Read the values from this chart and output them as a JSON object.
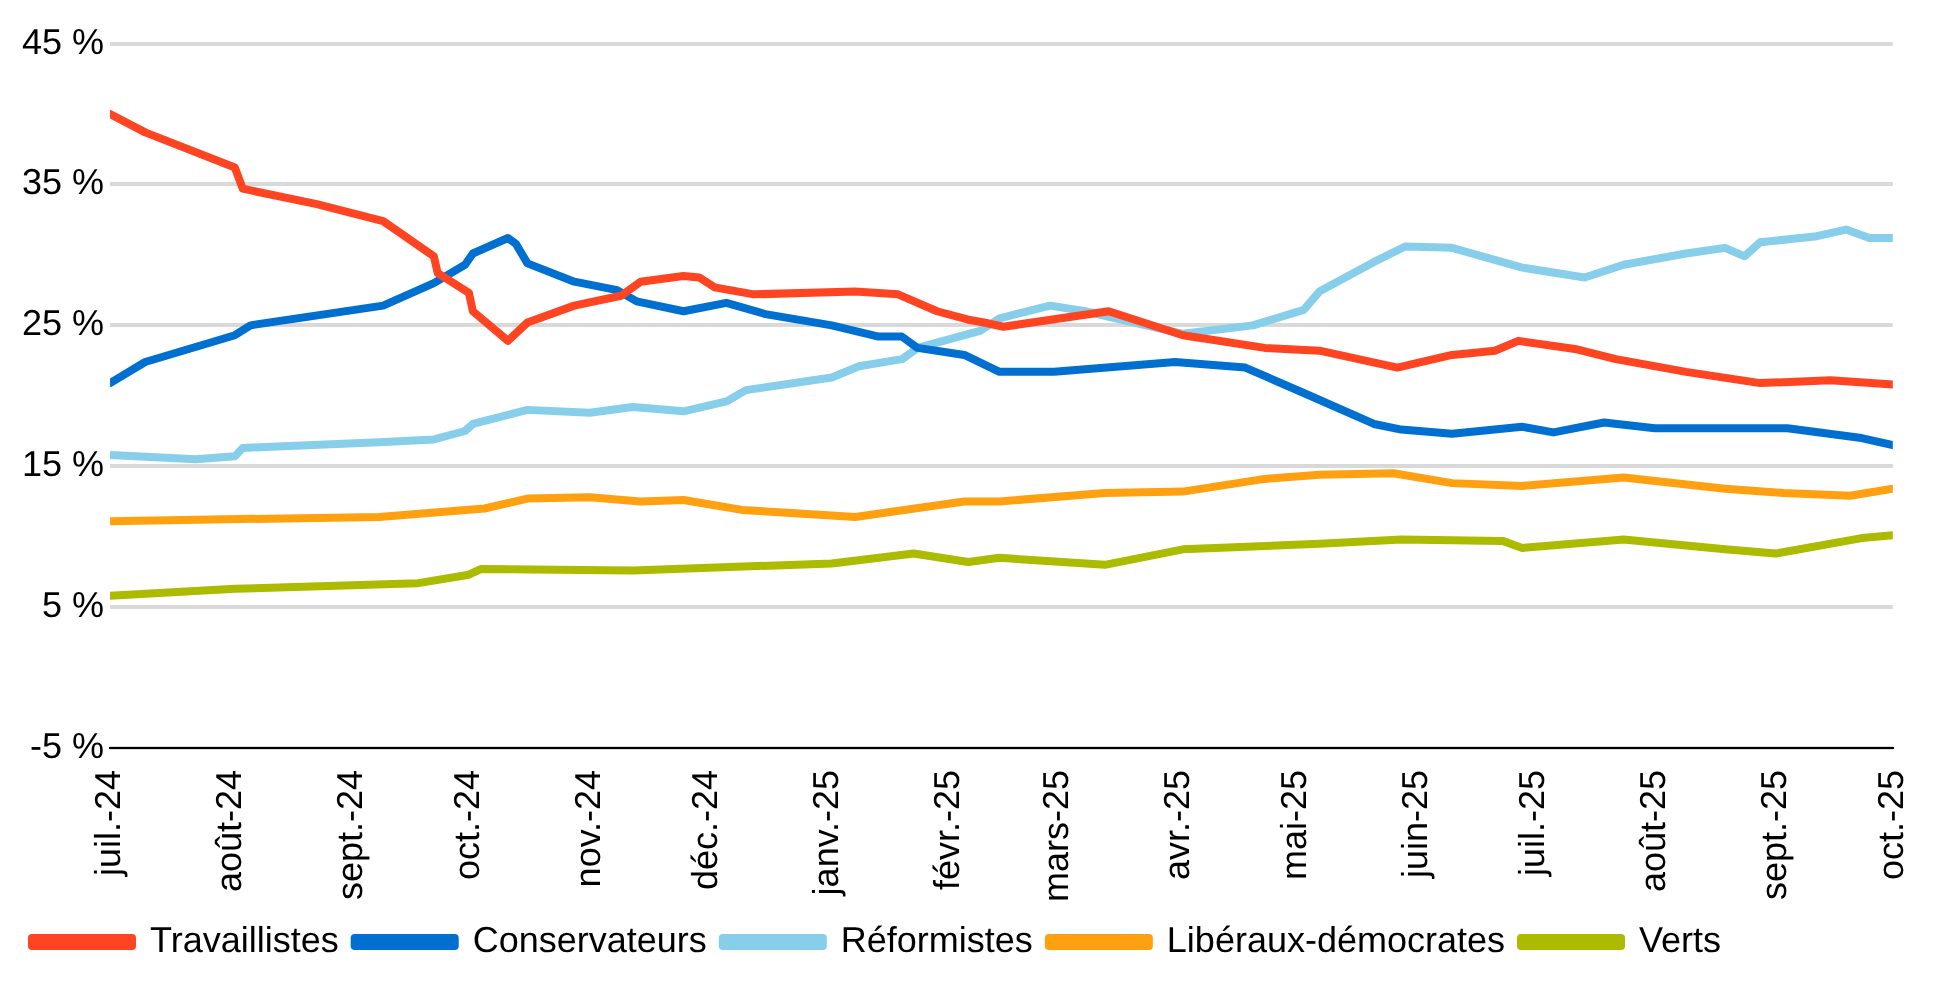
{
  "chart_data": {
    "type": "line",
    "xlim": [
      "2024-07-01",
      "2025-10-01"
    ],
    "xticks": [
      {
        "value": "2024-07-01",
        "label": "juil.-24"
      },
      {
        "value": "2024-08-01",
        "label": "août-24"
      },
      {
        "value": "2024-09-01",
        "label": "sept.-24"
      },
      {
        "value": "2024-10-01",
        "label": "oct.-24"
      },
      {
        "value": "2024-11-01",
        "label": "nov.-24"
      },
      {
        "value": "2024-12-01",
        "label": "déc.-24"
      },
      {
        "value": "2025-01-01",
        "label": "janv.-25"
      },
      {
        "value": "2025-02-01",
        "label": "févr.-25"
      },
      {
        "value": "2025-03-01",
        "label": "mars-25"
      },
      {
        "value": "2025-04-01",
        "label": "avr.-25"
      },
      {
        "value": "2025-05-01",
        "label": "mai-25"
      },
      {
        "value": "2025-06-01",
        "label": "juin-25"
      },
      {
        "value": "2025-07-01",
        "label": "juil.-25"
      },
      {
        "value": "2025-08-01",
        "label": "août-25"
      },
      {
        "value": "2025-09-01",
        "label": "sept.-25"
      },
      {
        "value": "2025-10-01",
        "label": "oct.-25"
      }
    ],
    "ylim": [
      -5,
      45
    ],
    "yticks": [
      {
        "value": -5,
        "label": "-5 %"
      },
      {
        "value": 5,
        "label": "5 %"
      },
      {
        "value": 15,
        "label": "15 %"
      },
      {
        "value": 25,
        "label": "25 %"
      },
      {
        "value": 35,
        "label": "35 %"
      },
      {
        "value": 45,
        "label": "45 %"
      }
    ],
    "grid": "y",
    "legend": "bottom",
    "marker": "none",
    "line_style": "solid",
    "series": [
      {
        "name": "Travaillistes",
        "color": "#ff4422",
        "x": [
          "2024-07-01",
          "2024-07-10",
          "2024-08-02",
          "2024-08-04",
          "2024-08-23",
          "2024-09-09",
          "2024-09-22",
          "2024-09-23",
          "2024-10-01",
          "2024-10-02",
          "2024-10-11",
          "2024-10-16",
          "2024-10-28",
          "2024-11-09",
          "2024-11-14",
          "2024-11-25",
          "2024-11-29",
          "2024-12-03",
          "2024-12-13",
          "2025-01-08",
          "2025-01-19",
          "2025-01-29",
          "2025-02-06",
          "2025-02-10",
          "2025-02-15",
          "2025-03-14",
          "2025-04-02",
          "2025-04-23",
          "2025-05-07",
          "2025-05-27",
          "2025-06-10",
          "2025-06-21",
          "2025-06-27",
          "2025-07-12",
          "2025-07-22",
          "2025-08-09",
          "2025-08-28",
          "2025-09-15",
          "2025-10-01"
        ],
        "values": [
          40.0,
          38.7,
          36.2,
          34.7,
          33.6,
          32.4,
          29.9,
          28.7,
          27.3,
          26.0,
          23.9,
          25.2,
          26.4,
          27.1,
          28.1,
          28.5,
          28.4,
          27.7,
          27.2,
          27.4,
          27.2,
          26.0,
          25.4,
          25.2,
          24.9,
          26.0,
          24.3,
          23.4,
          23.2,
          22.0,
          22.9,
          23.2,
          23.9,
          23.3,
          22.6,
          21.7,
          20.9,
          21.1,
          20.8
        ]
      },
      {
        "name": "Conservateurs",
        "color": "#0070d0",
        "x": [
          "2024-07-01",
          "2024-07-10",
          "2024-08-02",
          "2024-08-06",
          "2024-09-09",
          "2024-09-22",
          "2024-09-30",
          "2024-10-02",
          "2024-10-11",
          "2024-10-13",
          "2024-10-16",
          "2024-10-28",
          "2024-11-08",
          "2024-11-13",
          "2024-11-25",
          "2024-12-06",
          "2024-12-16",
          "2025-01-02",
          "2025-01-14",
          "2025-01-20",
          "2025-01-24",
          "2025-02-05",
          "2025-02-14",
          "2025-02-28",
          "2025-03-31",
          "2025-04-18",
          "2025-05-03",
          "2025-05-21",
          "2025-05-28",
          "2025-06-10",
          "2025-06-28",
          "2025-07-06",
          "2025-07-19",
          "2025-08-01",
          "2025-09-04",
          "2025-09-23",
          "2025-10-01"
        ],
        "values": [
          20.9,
          22.4,
          24.3,
          25.0,
          26.4,
          28.0,
          29.3,
          30.1,
          31.2,
          30.8,
          29.4,
          28.1,
          27.5,
          26.7,
          26.0,
          26.6,
          25.8,
          25.0,
          24.2,
          24.2,
          23.4,
          22.9,
          21.7,
          21.7,
          22.4,
          22.0,
          20.2,
          18.0,
          17.6,
          17.3,
          17.8,
          17.4,
          18.1,
          17.7,
          17.7,
          17.0,
          16.5
        ]
      },
      {
        "name": "Réformistes",
        "color": "#87ceeb",
        "x": [
          "2024-07-01",
          "2024-07-23",
          "2024-08-02",
          "2024-08-04",
          "2024-09-08",
          "2024-09-22",
          "2024-09-30",
          "2024-10-02",
          "2024-10-16",
          "2024-11-01",
          "2024-11-12",
          "2024-11-25",
          "2024-12-06",
          "2024-12-11",
          "2025-01-02",
          "2025-01-09",
          "2025-01-20",
          "2025-01-24",
          "2025-02-09",
          "2025-02-14",
          "2025-02-27",
          "2025-03-08",
          "2025-04-02",
          "2025-04-20",
          "2025-05-03",
          "2025-05-07",
          "2025-05-21",
          "2025-05-29",
          "2025-06-10",
          "2025-06-28",
          "2025-07-14",
          "2025-07-24",
          "2025-08-09",
          "2025-08-19",
          "2025-08-24",
          "2025-08-28",
          "2025-09-11",
          "2025-09-19",
          "2025-09-25",
          "2025-10-01"
        ],
        "values": [
          15.8,
          15.5,
          15.7,
          16.3,
          16.7,
          16.9,
          17.5,
          18.0,
          19.0,
          18.8,
          19.2,
          18.9,
          19.6,
          20.4,
          21.3,
          22.1,
          22.6,
          23.4,
          24.6,
          25.5,
          26.4,
          26.0,
          24.4,
          25.0,
          26.1,
          27.4,
          29.5,
          30.6,
          30.5,
          29.1,
          28.4,
          29.3,
          30.1,
          30.5,
          29.9,
          30.9,
          31.3,
          31.8,
          31.2,
          31.2
        ]
      },
      {
        "name": "Libéraux-démocrates",
        "color": "#ffa010",
        "x": [
          "2024-07-01",
          "2024-09-08",
          "2024-10-05",
          "2024-10-16",
          "2024-11-01",
          "2024-11-14",
          "2024-11-25",
          "2024-12-10",
          "2025-01-08",
          "2025-02-05",
          "2025-02-14",
          "2025-03-13",
          "2025-04-02",
          "2025-04-23",
          "2025-05-07",
          "2025-05-26",
          "2025-06-10",
          "2025-06-28",
          "2025-07-24",
          "2025-08-19",
          "2025-09-03",
          "2025-09-20",
          "2025-10-01"
        ],
        "values": [
          11.1,
          11.4,
          12.0,
          12.7,
          12.8,
          12.5,
          12.6,
          11.9,
          11.4,
          12.5,
          12.5,
          13.1,
          13.2,
          14.1,
          14.4,
          14.5,
          13.8,
          13.6,
          14.2,
          13.4,
          13.1,
          12.9,
          13.4
        ]
      },
      {
        "name": "Verts",
        "color": "#aabb00",
        "x": [
          "2024-07-01",
          "2024-08-02",
          "2024-09-18",
          "2024-10-01",
          "2024-10-04",
          "2024-11-12",
          "2025-01-02",
          "2025-01-23",
          "2025-02-06",
          "2025-02-14",
          "2025-03-13",
          "2025-04-02",
          "2025-05-07",
          "2025-05-28",
          "2025-06-23",
          "2025-06-28",
          "2025-07-24",
          "2025-08-19",
          "2025-09-01",
          "2025-09-23",
          "2025-10-01"
        ],
        "values": [
          5.8,
          6.3,
          6.7,
          7.3,
          7.7,
          7.6,
          8.1,
          8.8,
          8.2,
          8.5,
          8.0,
          9.1,
          9.5,
          9.8,
          9.7,
          9.2,
          9.8,
          9.1,
          8.8,
          9.9,
          10.1
        ]
      }
    ]
  }
}
